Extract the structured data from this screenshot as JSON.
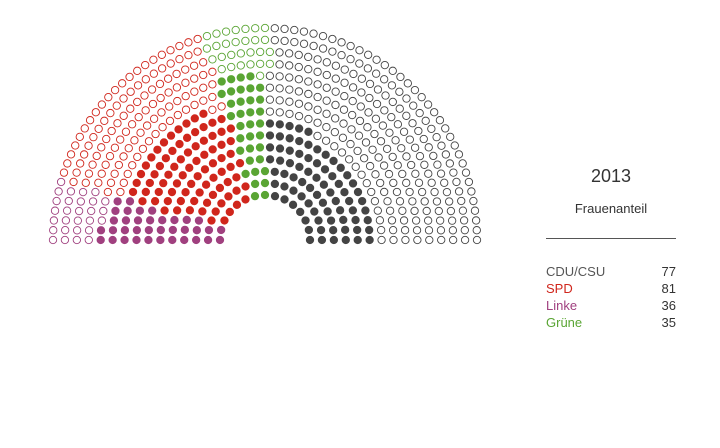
{
  "chart_data": {
    "type": "hemicycle",
    "title": "2013",
    "subtitle": "Frauenanteil",
    "series": [
      {
        "key": "linke",
        "name": "Linke",
        "women": 36,
        "total": 64,
        "color": "#a0407f"
      },
      {
        "key": "spd",
        "name": "SPD",
        "women": 81,
        "total": 193,
        "color": "#d0261c"
      },
      {
        "key": "gruene",
        "name": "Grüne",
        "women": 35,
        "total": 63,
        "color": "#5aa534"
      },
      {
        "key": "cdu",
        "name": "CDU/CSU",
        "women": 77,
        "total": 311,
        "color": "#444444"
      }
    ],
    "legend_order": [
      "cdu",
      "spd",
      "linke",
      "gruene"
    ]
  }
}
